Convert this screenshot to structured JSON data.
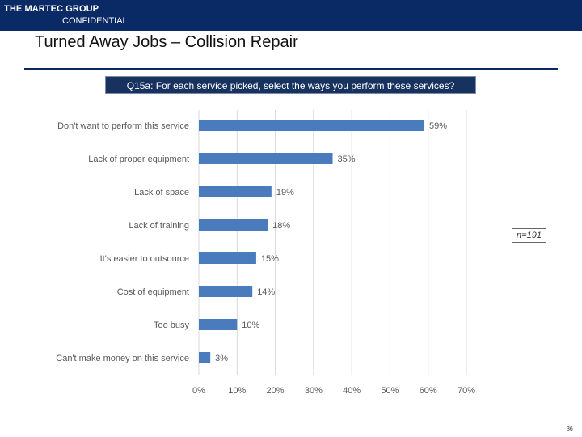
{
  "header": {
    "brand": "THE MARTEC GROUP",
    "confidential": "CONFIDENTIAL"
  },
  "slide": {
    "title": "Turned Away Jobs – Collision Repair",
    "question": "Q15a: For each service picked, select the ways you perform these services?",
    "sample_size": "n=191",
    "page_number": "36"
  },
  "colors": {
    "header": "#0a2a66",
    "bar": "#4a7bbd",
    "grid": "#d9d9d9"
  },
  "chart_data": {
    "type": "bar",
    "orientation": "horizontal",
    "categories": [
      "Don't want to perform this service",
      "Lack of proper equipment",
      "Lack of space",
      "Lack of training",
      "It's easier to outsource",
      "Cost of equipment",
      "Too busy",
      "Can't make money on this service"
    ],
    "values": [
      59,
      35,
      19,
      18,
      15,
      14,
      10,
      3
    ],
    "value_labels": [
      "59%",
      "35%",
      "19%",
      "18%",
      "15%",
      "14%",
      "10%",
      "3%"
    ],
    "xlim": [
      0,
      70
    ],
    "xticks": [
      0,
      10,
      20,
      30,
      40,
      50,
      60,
      70
    ],
    "xtick_labels": [
      "0%",
      "10%",
      "20%",
      "30%",
      "40%",
      "50%",
      "60%",
      "70%"
    ],
    "grid": true,
    "legend": false
  }
}
